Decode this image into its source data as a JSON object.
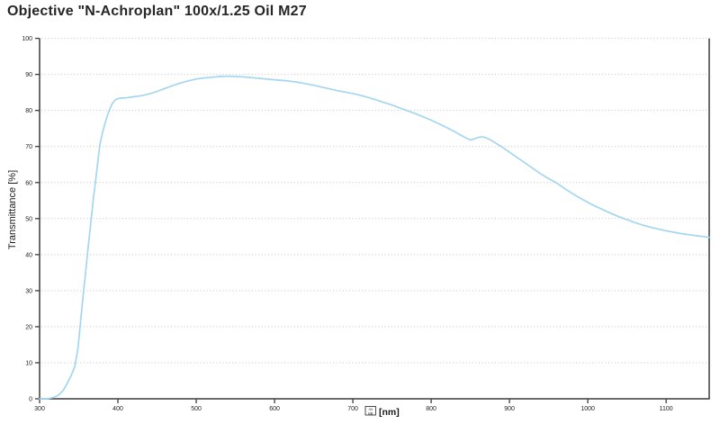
{
  "window": {
    "background": "#ffffff"
  },
  "header": {
    "title": "Objective \"N-Achroplan\" 100x/1.25 Oil M27"
  },
  "colors": {
    "curve": "#a4d6ef",
    "axis": "#3c3c3c",
    "grid": "#c3c3c3",
    "tick_text": "#1f1f1f",
    "label_text": "#1a1a1a",
    "background": "#ffffff"
  },
  "chart_data": {
    "type": "line",
    "title": "Objective \"N-Achroplan\" 100x/1.25 Oil M27",
    "ylabel": "Transmittance [%]",
    "xlabel_missing_glyph_hex": [
      "03",
      "BB"
    ],
    "xlabel_unit": "[nm]",
    "xlim": [
      300,
      1155
    ],
    "ylim": [
      0,
      100
    ],
    "x_ticks": [
      300,
      400,
      500,
      600,
      700,
      800,
      900,
      1000,
      1100
    ],
    "y_ticks": [
      0,
      10,
      20,
      30,
      40,
      50,
      60,
      70,
      80,
      90,
      100
    ],
    "grid": "horizontal-dotted",
    "legend": "none",
    "series": [
      {
        "name": "Transmittance",
        "color": "#a4d6ef",
        "points": [
          [
            300,
            0
          ],
          [
            306,
            0
          ],
          [
            312,
            0.1
          ],
          [
            318,
            0.4
          ],
          [
            324,
            1
          ],
          [
            330,
            2.3
          ],
          [
            335,
            4.2
          ],
          [
            340,
            6.3
          ],
          [
            345,
            9
          ],
          [
            349,
            14
          ],
          [
            352,
            20.5
          ],
          [
            355,
            27.5
          ],
          [
            358,
            33.5
          ],
          [
            361,
            40
          ],
          [
            364,
            46
          ],
          [
            366,
            50
          ],
          [
            369,
            56
          ],
          [
            372,
            61.5
          ],
          [
            375,
            67
          ],
          [
            377,
            70.5
          ],
          [
            380,
            73.5
          ],
          [
            383,
            76
          ],
          [
            386,
            78.2
          ],
          [
            389,
            80
          ],
          [
            392,
            81.6
          ],
          [
            395,
            82.6
          ],
          [
            398,
            83.1
          ],
          [
            402,
            83.4
          ],
          [
            410,
            83.5
          ],
          [
            420,
            83.8
          ],
          [
            430,
            84.1
          ],
          [
            440,
            84.6
          ],
          [
            450,
            85.3
          ],
          [
            460,
            86.1
          ],
          [
            470,
            86.9
          ],
          [
            480,
            87.6
          ],
          [
            490,
            88.2
          ],
          [
            500,
            88.7
          ],
          [
            510,
            89
          ],
          [
            520,
            89.2
          ],
          [
            530,
            89.4
          ],
          [
            540,
            89.5
          ],
          [
            550,
            89.4
          ],
          [
            560,
            89.3
          ],
          [
            570,
            89.1
          ],
          [
            580,
            88.9
          ],
          [
            590,
            88.7
          ],
          [
            600,
            88.5
          ],
          [
            610,
            88.3
          ],
          [
            620,
            88.1
          ],
          [
            630,
            87.8
          ],
          [
            640,
            87.4
          ],
          [
            650,
            87
          ],
          [
            660,
            86.5
          ],
          [
            670,
            86
          ],
          [
            680,
            85.5
          ],
          [
            690,
            85.1
          ],
          [
            700,
            84.7
          ],
          [
            710,
            84.2
          ],
          [
            720,
            83.6
          ],
          [
            730,
            82.9
          ],
          [
            740,
            82.2
          ],
          [
            750,
            81.5
          ],
          [
            760,
            80.7
          ],
          [
            770,
            79.9
          ],
          [
            780,
            79.1
          ],
          [
            790,
            78.2
          ],
          [
            800,
            77.3
          ],
          [
            810,
            76.3
          ],
          [
            820,
            75.2
          ],
          [
            830,
            74.1
          ],
          [
            840,
            72.9
          ],
          [
            845,
            72.3
          ],
          [
            850,
            71.8
          ],
          [
            855,
            72.1
          ],
          [
            860,
            72.5
          ],
          [
            865,
            72.7
          ],
          [
            870,
            72.4
          ],
          [
            876,
            71.8
          ],
          [
            882,
            71
          ],
          [
            890,
            69.9
          ],
          [
            900,
            68.4
          ],
          [
            910,
            66.9
          ],
          [
            920,
            65.4
          ],
          [
            930,
            63.9
          ],
          [
            940,
            62.4
          ],
          [
            950,
            61.1
          ],
          [
            960,
            59.9
          ],
          [
            970,
            58.4
          ],
          [
            980,
            57
          ],
          [
            990,
            55.7
          ],
          [
            1000,
            54.5
          ],
          [
            1010,
            53.4
          ],
          [
            1020,
            52.4
          ],
          [
            1030,
            51.4
          ],
          [
            1040,
            50.5
          ],
          [
            1050,
            49.7
          ],
          [
            1060,
            48.9
          ],
          [
            1070,
            48.2
          ],
          [
            1080,
            47.6
          ],
          [
            1090,
            47.1
          ],
          [
            1100,
            46.6
          ],
          [
            1110,
            46.2
          ],
          [
            1120,
            45.8
          ],
          [
            1130,
            45.5
          ],
          [
            1140,
            45.2
          ],
          [
            1148,
            45
          ],
          [
            1155,
            44.8
          ]
        ]
      }
    ]
  }
}
